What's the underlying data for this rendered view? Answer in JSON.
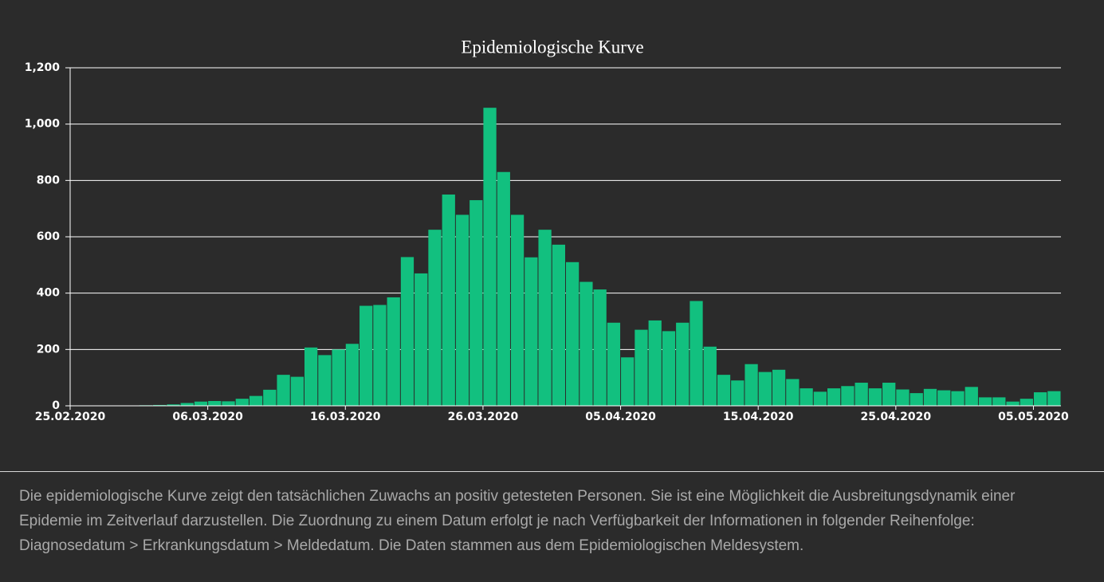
{
  "chart_data": {
    "type": "bar",
    "title": "Epidemiologische Kurve",
    "x": [
      "25.02.2020",
      "26.02.2020",
      "27.02.2020",
      "28.02.2020",
      "29.02.2020",
      "01.03.2020",
      "02.03.2020",
      "03.03.2020",
      "04.03.2020",
      "05.03.2020",
      "06.03.2020",
      "07.03.2020",
      "08.03.2020",
      "09.03.2020",
      "10.03.2020",
      "11.03.2020",
      "12.03.2020",
      "13.03.2020",
      "14.03.2020",
      "15.03.2020",
      "16.03.2020",
      "17.03.2020",
      "18.03.2020",
      "19.03.2020",
      "20.03.2020",
      "21.03.2020",
      "22.03.2020",
      "23.03.2020",
      "24.03.2020",
      "25.03.2020",
      "26.03.2020",
      "27.03.2020",
      "28.03.2020",
      "29.03.2020",
      "30.03.2020",
      "31.03.2020",
      "01.04.2020",
      "02.04.2020",
      "03.04.2020",
      "04.04.2020",
      "05.04.2020",
      "06.04.2020",
      "07.04.2020",
      "08.04.2020",
      "09.04.2020",
      "10.04.2020",
      "11.04.2020",
      "12.04.2020",
      "13.04.2020",
      "14.04.2020",
      "15.04.2020",
      "16.04.2020",
      "17.04.2020",
      "18.04.2020",
      "19.04.2020",
      "20.04.2020",
      "21.04.2020",
      "22.04.2020",
      "23.04.2020",
      "24.04.2020",
      "25.04.2020",
      "26.04.2020",
      "27.04.2020",
      "28.04.2020",
      "29.04.2020",
      "30.04.2020",
      "01.05.2020",
      "02.05.2020",
      "03.05.2020",
      "04.05.2020",
      "05.05.2020",
      "06.05.2020"
    ],
    "values": [
      0,
      0,
      0,
      1,
      1,
      2,
      3,
      5,
      10,
      15,
      17,
      16,
      25,
      35,
      57,
      110,
      103,
      207,
      180,
      200,
      220,
      355,
      358,
      385,
      528,
      470,
      625,
      750,
      678,
      730,
      1058,
      830,
      678,
      527,
      625,
      572,
      510,
      440,
      413,
      295,
      172,
      270,
      303,
      265,
      295,
      372,
      210,
      110,
      90,
      148,
      120,
      128,
      95,
      62,
      50,
      62,
      70,
      82,
      62,
      82,
      58,
      45,
      60,
      55,
      52,
      67,
      30,
      30,
      15,
      25,
      48,
      52
    ],
    "color": "#12c07f",
    "xlim": [
      "25.02.2020",
      "07.05.2020"
    ],
    "xticks": [
      "25.02.2020",
      "06.03.2020",
      "16.03.2020",
      "26.03.2020",
      "05.04.2020",
      "15.04.2020",
      "25.04.2020",
      "05.05.2020"
    ],
    "ylim": [
      0,
      1200
    ],
    "yticks": [
      0,
      200,
      400,
      600,
      800,
      {
        "value": 1000,
        "label": "1,000"
      },
      {
        "value": 1200,
        "label": "1,200"
      }
    ],
    "grid": true
  },
  "caption": "Die epidemiologische Kurve zeigt den tatsächlichen Zuwachs an positiv getesteten Personen. Sie ist eine Möglichkeit die Ausbreitungsdynamik einer Epidemie im Zeitverlauf darzustellen. Die Zuordnung zu einem Datum erfolgt je nach Verfügbarkeit der Informationen in folgender Reihenfolge: Diagnosedatum > Erkrankungsdatum > Meldedatum. Die Daten stammen aus dem Epidemiologischen Meldesystem."
}
